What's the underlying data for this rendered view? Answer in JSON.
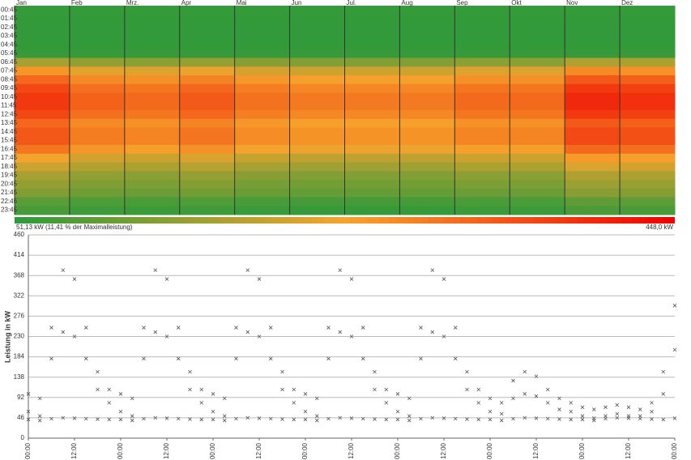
{
  "chart_data": [
    {
      "type": "heatmap",
      "columns": [
        "Jan",
        "Feb",
        "Mrz.",
        "Apr",
        "Mai",
        "Jun",
        "Jul.",
        "Aug",
        "Sep",
        "Okt",
        "Nov",
        "Dez"
      ],
      "rows": [
        "00:45",
        "01:45",
        "02:45",
        "03:45",
        "04:45",
        "05:45",
        "06:45",
        "07:45",
        "08:45",
        "09:45",
        "10:45",
        "11:45",
        "12:45",
        "13:45",
        "14:45",
        "15:45",
        "16:45",
        "17:45",
        "18:45",
        "19:45",
        "20:45",
        "21:45",
        "22:45",
        "23:45"
      ],
      "z": [
        [
          58,
          56,
          55,
          55,
          56,
          60,
          171,
          266,
          323,
          361,
          380,
          380,
          361,
          323,
          342,
          342,
          304,
          247,
          209,
          171,
          152,
          133,
          95,
          76
        ],
        [
          58,
          56,
          55,
          55,
          56,
          60,
          149,
          231,
          281,
          314,
          330,
          330,
          314,
          281,
          297,
          297,
          264,
          215,
          182,
          149,
          132,
          116,
          83,
          66
        ],
        [
          58,
          56,
          55,
          55,
          56,
          60,
          144,
          224,
          272,
          304,
          320,
          320,
          304,
          272,
          288,
          288,
          256,
          208,
          176,
          144,
          128,
          112,
          80,
          64
        ],
        [
          58,
          56,
          55,
          55,
          56,
          60,
          153,
          238,
          289,
          323,
          340,
          340,
          323,
          289,
          306,
          306,
          272,
          221,
          187,
          153,
          136,
          119,
          85,
          68
        ],
        [
          58,
          56,
          55,
          55,
          56,
          60,
          140,
          217,
          264,
          295,
          310,
          310,
          295,
          264,
          279,
          279,
          248,
          202,
          171,
          140,
          124,
          109,
          78,
          62
        ],
        [
          58,
          56,
          55,
          55,
          56,
          60,
          135,
          210,
          255,
          285,
          300,
          300,
          285,
          255,
          270,
          270,
          240,
          195,
          165,
          135,
          120,
          105,
          75,
          60
        ],
        [
          58,
          56,
          55,
          55,
          56,
          60,
          135,
          210,
          255,
          285,
          300,
          300,
          285,
          255,
          270,
          270,
          240,
          195,
          165,
          135,
          120,
          105,
          75,
          60
        ],
        [
          58,
          56,
          55,
          55,
          56,
          60,
          135,
          210,
          255,
          285,
          300,
          300,
          285,
          255,
          270,
          270,
          240,
          195,
          165,
          135,
          120,
          105,
          75,
          60
        ],
        [
          58,
          56,
          55,
          55,
          56,
          60,
          144,
          224,
          272,
          304,
          320,
          320,
          304,
          272,
          288,
          288,
          256,
          208,
          176,
          144,
          128,
          112,
          80,
          64
        ],
        [
          58,
          56,
          55,
          55,
          56,
          60,
          144,
          224,
          272,
          304,
          320,
          320,
          304,
          272,
          288,
          288,
          256,
          208,
          176,
          144,
          128,
          112,
          80,
          64
        ],
        [
          58,
          56,
          55,
          55,
          56,
          60,
          180,
          280,
          340,
          380,
          400,
          400,
          380,
          340,
          360,
          360,
          320,
          260,
          220,
          180,
          160,
          140,
          100,
          80
        ],
        [
          58,
          56,
          55,
          55,
          56,
          60,
          176,
          273,
          332,
          371,
          390,
          390,
          371,
          332,
          351,
          351,
          312,
          254,
          215,
          176,
          156,
          137,
          98,
          78
        ]
      ],
      "colors": [
        "#2e9a3a",
        "#f6a42c",
        "#f00000"
      ],
      "zlim": [
        {
          "value": 51.13,
          "label": "51,13 kW (11,41 % der Maximalleistung)"
        },
        {
          "value": 448,
          "label": "448,0 kW"
        }
      ]
    },
    {
      "type": "scatter",
      "y_label": "Leistung in kW",
      "x": [
        0,
        3,
        6,
        9,
        12,
        15,
        18,
        21,
        24,
        27,
        30,
        33,
        36,
        39,
        42,
        45,
        48,
        51,
        54,
        57,
        60,
        63,
        66,
        69,
        72,
        75,
        78,
        81,
        84,
        87,
        90,
        93,
        96,
        99,
        102,
        105,
        108,
        111,
        114,
        117,
        120,
        123,
        126,
        129,
        132,
        135,
        138,
        141,
        144,
        147,
        150,
        153,
        156,
        159,
        162,
        165,
        168
      ],
      "series": [
        {
          "color": "#555555",
          "values": [
            100,
            90,
            250,
            380,
            360,
            250,
            150,
            110,
            100,
            90,
            250,
            380,
            360,
            250,
            150,
            110,
            100,
            90,
            250,
            380,
            360,
            250,
            150,
            110,
            100,
            90,
            250,
            380,
            360,
            250,
            150,
            110,
            100,
            90,
            250,
            380,
            360,
            250,
            150,
            110,
            90,
            80,
            130,
            150,
            140,
            110,
            90,
            80,
            70,
            65,
            70,
            75,
            70,
            65,
            80,
            150,
            300
          ]
        },
        {
          "color": "#555555",
          "values": [
            60,
            50,
            180,
            240,
            230,
            180,
            110,
            80,
            60,
            50,
            180,
            240,
            230,
            180,
            110,
            80,
            60,
            50,
            180,
            240,
            230,
            180,
            110,
            80,
            60,
            50,
            180,
            240,
            230,
            180,
            110,
            80,
            60,
            50,
            180,
            240,
            230,
            180,
            110,
            80,
            60,
            55,
            90,
            100,
            95,
            80,
            65,
            60,
            50,
            45,
            50,
            55,
            50,
            50,
            60,
            100,
            200
          ]
        },
        {
          "color": "#555555",
          "values": [
            42,
            40,
            44,
            46,
            45,
            44,
            43,
            42,
            42,
            40,
            44,
            46,
            45,
            44,
            43,
            42,
            42,
            40,
            44,
            46,
            45,
            44,
            43,
            42,
            42,
            40,
            44,
            46,
            45,
            44,
            43,
            42,
            42,
            40,
            44,
            46,
            45,
            44,
            43,
            42,
            42,
            40,
            44,
            46,
            45,
            44,
            43,
            42,
            42,
            40,
            44,
            46,
            45,
            44,
            43,
            42,
            45
          ]
        }
      ],
      "xlim": [
        0,
        168
      ],
      "xticks": [
        {
          "value": 0,
          "label": "00:00"
        },
        {
          "value": 12,
          "label": "12:00"
        },
        {
          "value": 24,
          "label": "00:00"
        },
        {
          "value": 36,
          "label": "12:00"
        },
        {
          "value": 48,
          "label": "00:00"
        },
        {
          "value": 60,
          "label": "12:00"
        },
        {
          "value": 72,
          "label": "00:00"
        },
        {
          "value": 84,
          "label": "12:00"
        },
        {
          "value": 96,
          "label": "00:00"
        },
        {
          "value": 108,
          "label": "12:00"
        },
        {
          "value": 120,
          "label": "00:00"
        },
        {
          "value": 132,
          "label": "12:00"
        },
        {
          "value": 144,
          "label": "00:00"
        },
        {
          "value": 156,
          "label": "12:00"
        },
        {
          "value": 168,
          "label": "00:00"
        }
      ],
      "ylim": [
        0,
        460
      ],
      "yticks": [
        0,
        46,
        92,
        138,
        184,
        230,
        276,
        322,
        368,
        414,
        460
      ],
      "grid": true
    }
  ]
}
